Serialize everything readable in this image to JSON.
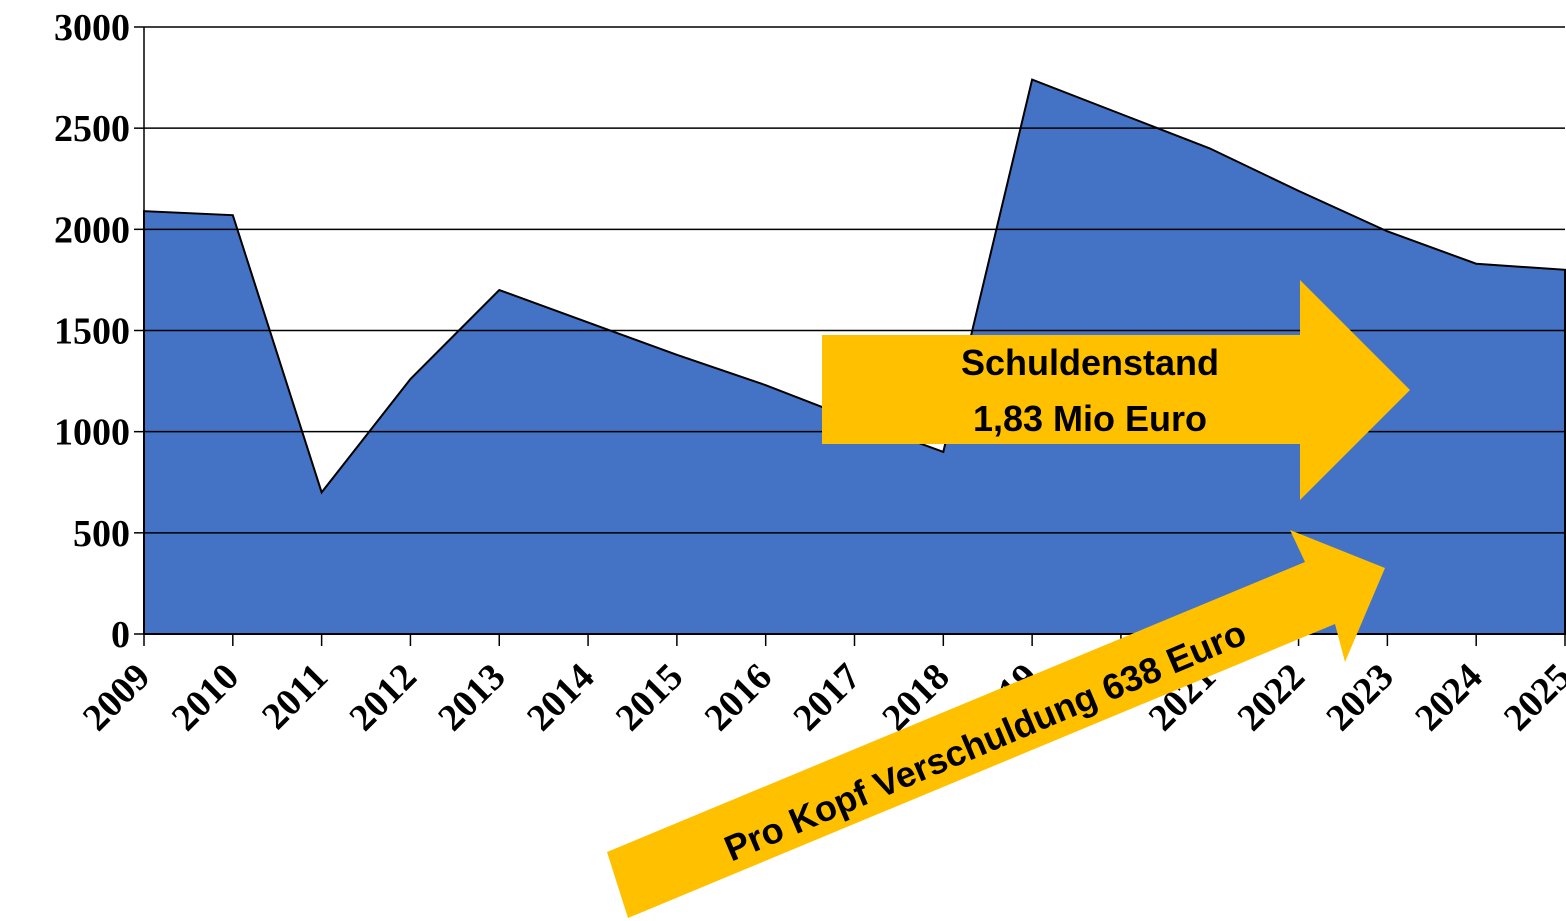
{
  "chart_data": {
    "type": "area",
    "categories": [
      "2009",
      "2010",
      "2011",
      "2012",
      "2013",
      "2014",
      "2015",
      "2016",
      "2017",
      "2018",
      "2019",
      "2020",
      "2021",
      "2022",
      "2023",
      "2024",
      "2025"
    ],
    "values": [
      2090,
      2070,
      700,
      1260,
      1700,
      1540,
      1380,
      1230,
      1060,
      900,
      2740,
      2570,
      2400,
      2190,
      1990,
      1830,
      1800
    ],
    "color": "#4472c4",
    "ylim": [
      0,
      3000
    ],
    "yticks": [
      0,
      500,
      1000,
      1500,
      2000,
      2500,
      3000
    ],
    "grid": true,
    "annotations": [
      {
        "lines": [
          "Schuldenstand",
          "1,83 Mio Euro"
        ],
        "color": "#ffc000"
      },
      {
        "lines": [
          "Pro Kopf Verschuldung 638 Euro"
        ],
        "color": "#ffc000"
      }
    ]
  }
}
